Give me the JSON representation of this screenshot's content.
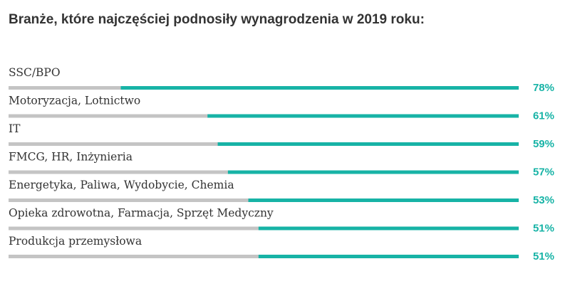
{
  "chart_data": {
    "type": "bar",
    "orientation": "horizontal",
    "title": "Branże, które najczęściej podnosiły wynagrodzenia w 2019 roku:",
    "categories": [
      "SSC/BPO",
      "Motoryzacja, Lotnictwo",
      "IT",
      "FMCG, HR, Inżynieria",
      "Energetyka, Paliwa, Wydobycie, Chemia",
      "Opieka zdrowotna, Farmacja, Sprzęt Medyczny",
      "Produkcja przemysłowa"
    ],
    "values": [
      78,
      61,
      59,
      57,
      53,
      51,
      51
    ],
    "value_labels": [
      "78%",
      "61%",
      "59%",
      "57%",
      "53%",
      "51%",
      "51%"
    ],
    "xlim": [
      0,
      100
    ],
    "color": "#17b3a6",
    "track_color": "#c4c4c4"
  }
}
